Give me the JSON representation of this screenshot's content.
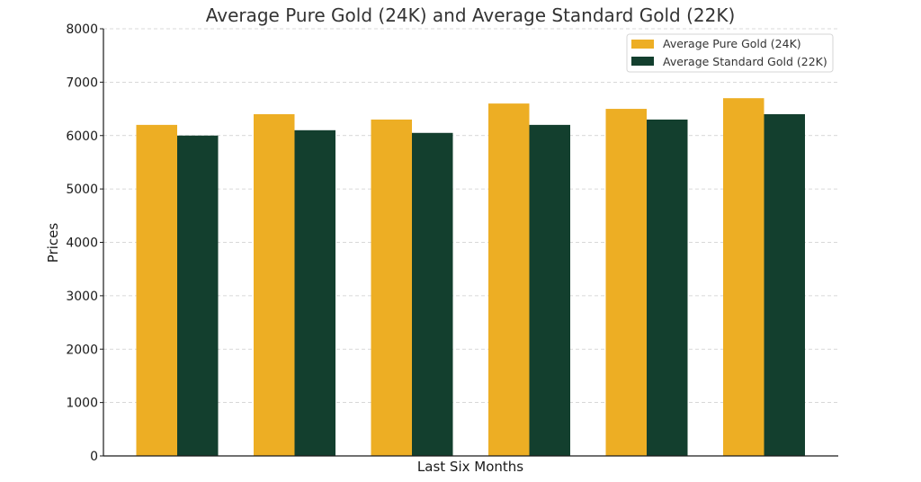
{
  "chart_data": {
    "type": "bar",
    "title": "Average Pure Gold (24K) and Average Standard Gold (22K)",
    "xlabel": "Last Six Months",
    "ylabel": "Prices",
    "categories": [
      "",
      "",
      "",
      "",
      "",
      ""
    ],
    "series": [
      {
        "name": "Average Pure Gold (24K)",
        "values": [
          6200,
          6400,
          6300,
          6600,
          6500,
          6700
        ]
      },
      {
        "name": "Average Standard Gold (22K)",
        "values": [
          6000,
          6100,
          6050,
          6200,
          6300,
          6400
        ]
      }
    ],
    "ylim": [
      0,
      8000
    ],
    "yticks": [
      "0",
      "1000",
      "2000",
      "3000",
      "4000",
      "5000",
      "6000",
      "7000",
      "8000"
    ],
    "grid": true,
    "legend_position": "top-right",
    "colors": [
      "#edae24",
      "#133f2e"
    ]
  }
}
